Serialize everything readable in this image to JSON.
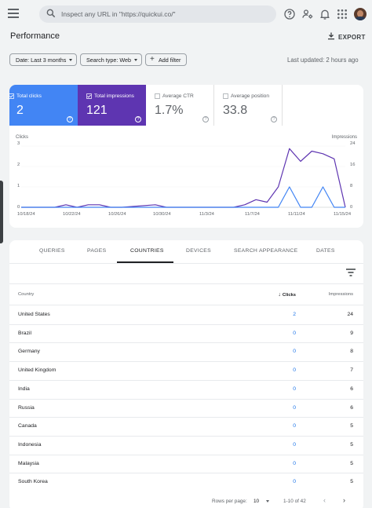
{
  "search": {
    "placeholder": "Inspect any URL in \"https://quickui.co/\""
  },
  "header": {
    "title": "Performance",
    "export_label": "EXPORT"
  },
  "filters": {
    "date": "Date: Last 3 months",
    "search_type": "Search type: Web",
    "add_filter": "Add filter",
    "last_updated": "Last updated: 2 hours ago"
  },
  "metrics": [
    {
      "label": "Total clicks",
      "value": "2",
      "selected": true
    },
    {
      "label": "Total impressions",
      "value": "121",
      "selected": true
    },
    {
      "label": "Average CTR",
      "value": "1.7%",
      "selected": false
    },
    {
      "label": "Average position",
      "value": "33.8",
      "selected": false
    }
  ],
  "chart_data": {
    "type": "line",
    "left_axis_label": "Clicks",
    "right_axis_label": "Impressions",
    "left_ylim": [
      0,
      3
    ],
    "right_ylim": [
      0,
      24
    ],
    "left_ticks": [
      "3",
      "2",
      "1",
      "0"
    ],
    "right_ticks": [
      "24",
      "16",
      "8",
      "0"
    ],
    "x_ticks": [
      "10/18/24",
      "10/22/24",
      "10/26/24",
      "10/30/24",
      "11/3/24",
      "11/7/24",
      "11/11/24",
      "11/15/24"
    ],
    "x_range": [
      "10/18/24",
      "11/16/24"
    ],
    "colors": {
      "clicks": "#4285f4",
      "impressions": "#5e35b1"
    },
    "series": [
      {
        "name": "Clicks",
        "axis": "left",
        "x": [
          "10/18/24",
          "11/9/24",
          "11/10/24",
          "11/11/24",
          "11/12/24",
          "11/13/24",
          "11/14/24",
          "11/15/24",
          "11/16/24"
        ],
        "values": [
          0,
          0,
          0,
          1,
          0,
          0,
          1,
          0,
          0
        ]
      },
      {
        "name": "Impressions",
        "axis": "right",
        "x": [
          "10/18/24",
          "10/21/24",
          "10/22/24",
          "10/23/24",
          "10/24/24",
          "10/25/24",
          "10/26/24",
          "10/27/24",
          "10/30/24",
          "10/31/24",
          "11/1/24",
          "11/6/24",
          "11/7/24",
          "11/8/24",
          "11/9/24",
          "11/10/24",
          "11/11/24",
          "11/12/24",
          "11/13/24",
          "11/14/24",
          "11/15/24",
          "11/16/24"
        ],
        "values": [
          0,
          0,
          1,
          0,
          1,
          1,
          0,
          0,
          1,
          0,
          0,
          0,
          1,
          3,
          2,
          8,
          23,
          18,
          22,
          21,
          19,
          0
        ]
      }
    ]
  },
  "tabs": [
    "QUERIES",
    "PAGES",
    "COUNTRIES",
    "DEVICES",
    "SEARCH APPEARANCE",
    "DATES"
  ],
  "table": {
    "headers": {
      "country": "Country",
      "clicks": "Clicks",
      "impressions": "Impressions"
    },
    "rows": [
      {
        "country": "United States",
        "clicks": "2",
        "impressions": "24"
      },
      {
        "country": "Brazil",
        "clicks": "0",
        "impressions": "9"
      },
      {
        "country": "Germany",
        "clicks": "0",
        "impressions": "8"
      },
      {
        "country": "United Kingdom",
        "clicks": "0",
        "impressions": "7"
      },
      {
        "country": "India",
        "clicks": "0",
        "impressions": "6"
      },
      {
        "country": "Russia",
        "clicks": "0",
        "impressions": "6"
      },
      {
        "country": "Canada",
        "clicks": "0",
        "impressions": "5"
      },
      {
        "country": "Indonesia",
        "clicks": "0",
        "impressions": "5"
      },
      {
        "country": "Malaysia",
        "clicks": "0",
        "impressions": "5"
      },
      {
        "country": "South Korea",
        "clicks": "0",
        "impressions": "5"
      }
    ]
  },
  "pagination": {
    "rows_label": "Rows per page:",
    "rows_value": "10",
    "range": "1-10 of 42"
  }
}
